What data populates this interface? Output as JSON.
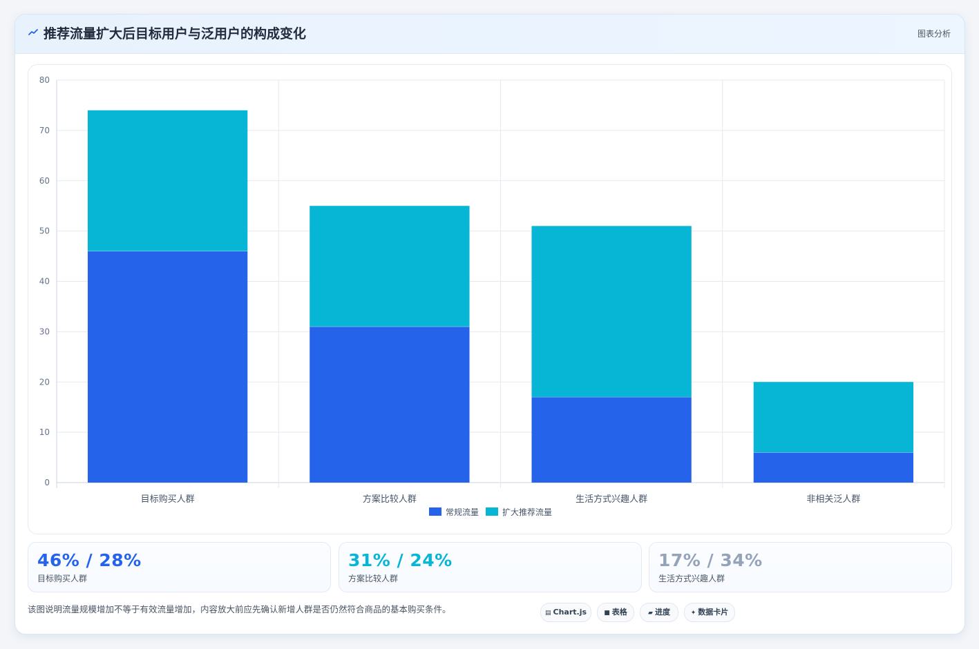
{
  "header": {
    "icon": "trend-line-icon",
    "title": "推荐流量扩大后目标用户与泛用户的构成变化",
    "right_label": "图表分析"
  },
  "chart_data": {
    "type": "bar",
    "stacked": true,
    "categories": [
      "目标购买人群",
      "方案比较人群",
      "生活方式兴趣人群",
      "非相关泛人群"
    ],
    "series": [
      {
        "name": "常规流量",
        "values": [
          46,
          31,
          17,
          6
        ],
        "color": "#2563eb"
      },
      {
        "name": "扩大推荐流量",
        "values": [
          28,
          24,
          34,
          14
        ],
        "color": "#06b6d4"
      }
    ],
    "ylim": [
      0,
      80
    ],
    "yticks": [
      0,
      10,
      20,
      30,
      40,
      50,
      60,
      70,
      80
    ],
    "grid": true,
    "legend_position": "bottom"
  },
  "stats": [
    {
      "value": "46% / 28%",
      "label": "目标购买人群",
      "color": "#2563eb"
    },
    {
      "value": "31% / 24%",
      "label": "方案比较人群",
      "color": "#06b6d4"
    },
    {
      "value": "17% / 34%",
      "label": "生活方式兴趣人群",
      "color": "#94a3b8"
    }
  ],
  "footnote": "该图说明流量规模增加不等于有效流量增加，内容放大前应先确认新增人群是否仍然符合商品的基本购买条件。",
  "chips": [
    {
      "icon": "chart-icon",
      "glyph": "▤",
      "label": "Chart.js"
    },
    {
      "icon": "table-icon",
      "glyph": "■",
      "label": "表格"
    },
    {
      "icon": "progress-icon",
      "glyph": "▰",
      "label": "进度"
    },
    {
      "icon": "sparkle-icon",
      "glyph": "✦",
      "label": "数据卡片"
    }
  ]
}
